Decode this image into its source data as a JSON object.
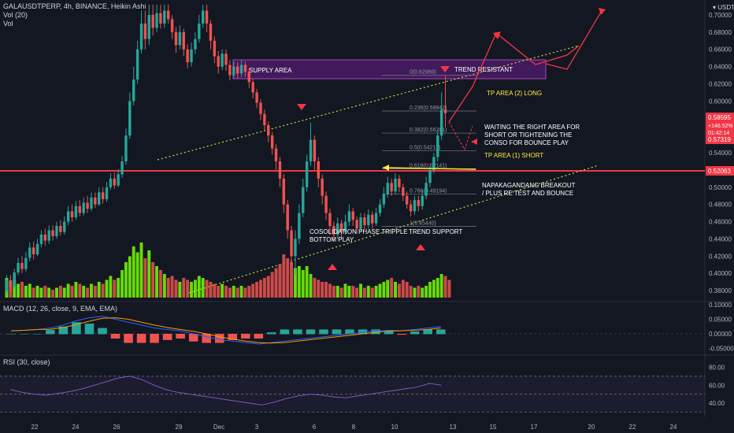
{
  "header": {
    "symbol": "GALAUSDTPERP, 4h, BINANCE, Heikin Ashi",
    "vol_label": "Vol (20)",
    "vol2_label": "Vol",
    "macd_label": "MACD (12, 26, close, 9, EMA, EMA)",
    "rsi_label": "RSI (30, close)",
    "currency": "USDT"
  },
  "price_scale": {
    "ticks": [
      "0.70000",
      "0.68000",
      "0.66000",
      "0.64000",
      "0.62000",
      "0.60000",
      "0.58000",
      "0.56000",
      "0.54000",
      "0.52000",
      "0.50000",
      "0.48000",
      "0.46000",
      "0.44000",
      "0.42000",
      "0.40000",
      "0.38000"
    ],
    "current_price": "0.58595",
    "change": "+146.52%",
    "countdown": "01:42:14",
    "second_price": "0.57319",
    "line_price": "0.52063"
  },
  "macd_scale": {
    "ticks": [
      "0.10000",
      "0.05000",
      "0.00000",
      "-0.05000"
    ]
  },
  "rsi_scale": {
    "ticks": [
      "80.00",
      "60.00",
      "40.00"
    ]
  },
  "time_axis": {
    "labels": [
      "22",
      "24",
      "26",
      "29",
      "Dec",
      "3",
      "6",
      "8",
      "10",
      "13",
      "15",
      "17",
      "20",
      "22",
      "24"
    ]
  },
  "annotations": {
    "supply_area": "SUPPLY AREA",
    "trend_resistant": "TREND RESISTANT",
    "tp_long": "TP AREA (2) LONG",
    "waiting_1": "WAITING THE RIGHT AREA FOR",
    "waiting_2": "SHORT OR TIGHTENING THE",
    "waiting_3": "CONSO FOR BOUNCE PLAY",
    "tp_short": "TP AREA (1) SHORT",
    "breakout_1": "NAPAKAGANDANG BREAKOUT",
    "breakout_2": "/ PLUS RE TEST AND BOUNCE",
    "consolidation_1": "COSOLIDATION PHASE TRIPPLE",
    "consolidation_2": "BOTTOM PLAY",
    "trend_support": "TREND SUPPORT"
  },
  "fib_levels": [
    "0(0.62980)",
    "0.236(0.58842)",
    "0.382(0.56281)",
    "0.5(0.54211)",
    "0.618(0.52141)",
    "0.786(0.49194)",
    "1(0.45440)"
  ],
  "colors": {
    "up": "#26a69a",
    "down": "#ef5350",
    "vol_up": "#76ff03",
    "vol_down": "#ef5350",
    "line_red": "#f23645",
    "supply": "#7b1fa2",
    "trend_line": "#cddc39",
    "rsi_line": "#7e57c2",
    "macd_line": "#2962ff",
    "signal_line": "#ff9800"
  },
  "chart_data": {
    "type": "candlestick",
    "ylim": [
      0.37,
      0.71
    ],
    "candles": [
      {
        "o": 0.38,
        "c": 0.392,
        "h": 0.398,
        "l": 0.376
      },
      {
        "o": 0.392,
        "c": 0.385,
        "h": 0.398,
        "l": 0.378
      },
      {
        "o": 0.385,
        "c": 0.401,
        "h": 0.405,
        "l": 0.382
      },
      {
        "o": 0.401,
        "c": 0.412,
        "h": 0.418,
        "l": 0.398
      },
      {
        "o": 0.412,
        "c": 0.405,
        "h": 0.42,
        "l": 0.4
      },
      {
        "o": 0.405,
        "c": 0.418,
        "h": 0.425,
        "l": 0.402
      },
      {
        "o": 0.418,
        "c": 0.43,
        "h": 0.436,
        "l": 0.414
      },
      {
        "o": 0.43,
        "c": 0.422,
        "h": 0.437,
        "l": 0.416
      },
      {
        "o": 0.422,
        "c": 0.434,
        "h": 0.44,
        "l": 0.42
      },
      {
        "o": 0.434,
        "c": 0.445,
        "h": 0.45,
        "l": 0.43
      },
      {
        "o": 0.445,
        "c": 0.438,
        "h": 0.452,
        "l": 0.432
      },
      {
        "o": 0.438,
        "c": 0.45,
        "h": 0.456,
        "l": 0.434
      },
      {
        "o": 0.45,
        "c": 0.443,
        "h": 0.456,
        "l": 0.438
      },
      {
        "o": 0.443,
        "c": 0.455,
        "h": 0.46,
        "l": 0.44
      },
      {
        "o": 0.455,
        "c": 0.448,
        "h": 0.462,
        "l": 0.444
      },
      {
        "o": 0.448,
        "c": 0.46,
        "h": 0.466,
        "l": 0.445
      },
      {
        "o": 0.46,
        "c": 0.472,
        "h": 0.478,
        "l": 0.456
      },
      {
        "o": 0.472,
        "c": 0.465,
        "h": 0.48,
        "l": 0.46
      },
      {
        "o": 0.465,
        "c": 0.478,
        "h": 0.484,
        "l": 0.462
      },
      {
        "o": 0.478,
        "c": 0.47,
        "h": 0.485,
        "l": 0.466
      },
      {
        "o": 0.47,
        "c": 0.482,
        "h": 0.488,
        "l": 0.467
      },
      {
        "o": 0.482,
        "c": 0.475,
        "h": 0.49,
        "l": 0.47
      },
      {
        "o": 0.475,
        "c": 0.488,
        "h": 0.494,
        "l": 0.472
      },
      {
        "o": 0.488,
        "c": 0.48,
        "h": 0.494,
        "l": 0.476
      },
      {
        "o": 0.48,
        "c": 0.494,
        "h": 0.5,
        "l": 0.478
      },
      {
        "o": 0.494,
        "c": 0.486,
        "h": 0.5,
        "l": 0.481
      },
      {
        "o": 0.486,
        "c": 0.5,
        "h": 0.506,
        "l": 0.483
      },
      {
        "o": 0.5,
        "c": 0.51,
        "h": 0.516,
        "l": 0.497
      },
      {
        "o": 0.51,
        "c": 0.502,
        "h": 0.517,
        "l": 0.498
      },
      {
        "o": 0.502,
        "c": 0.515,
        "h": 0.521,
        "l": 0.5
      },
      {
        "o": 0.515,
        "c": 0.53,
        "h": 0.536,
        "l": 0.511
      },
      {
        "o": 0.53,
        "c": 0.56,
        "h": 0.568,
        "l": 0.526
      },
      {
        "o": 0.56,
        "c": 0.6,
        "h": 0.61,
        "l": 0.556
      },
      {
        "o": 0.6,
        "c": 0.625,
        "h": 0.64,
        "l": 0.595
      },
      {
        "o": 0.625,
        "c": 0.66,
        "h": 0.67,
        "l": 0.62
      },
      {
        "o": 0.66,
        "c": 0.69,
        "h": 0.705,
        "l": 0.655
      },
      {
        "o": 0.69,
        "c": 0.672,
        "h": 0.705,
        "l": 0.66
      },
      {
        "o": 0.672,
        "c": 0.7,
        "h": 0.712,
        "l": 0.665
      },
      {
        "o": 0.7,
        "c": 0.685,
        "h": 0.712,
        "l": 0.676
      },
      {
        "o": 0.685,
        "c": 0.702,
        "h": 0.712,
        "l": 0.68
      },
      {
        "o": 0.702,
        "c": 0.69,
        "h": 0.712,
        "l": 0.684
      },
      {
        "o": 0.69,
        "c": 0.705,
        "h": 0.712,
        "l": 0.685
      },
      {
        "o": 0.705,
        "c": 0.695,
        "h": 0.712,
        "l": 0.69
      },
      {
        "o": 0.695,
        "c": 0.68,
        "h": 0.7,
        "l": 0.672
      },
      {
        "o": 0.68,
        "c": 0.665,
        "h": 0.686,
        "l": 0.656
      },
      {
        "o": 0.665,
        "c": 0.68,
        "h": 0.688,
        "l": 0.66
      },
      {
        "o": 0.68,
        "c": 0.66,
        "h": 0.684,
        "l": 0.652
      },
      {
        "o": 0.66,
        "c": 0.645,
        "h": 0.666,
        "l": 0.638
      },
      {
        "o": 0.645,
        "c": 0.66,
        "h": 0.668,
        "l": 0.64
      },
      {
        "o": 0.66,
        "c": 0.672,
        "h": 0.68,
        "l": 0.655
      },
      {
        "o": 0.672,
        "c": 0.69,
        "h": 0.7,
        "l": 0.668
      },
      {
        "o": 0.69,
        "c": 0.705,
        "h": 0.712,
        "l": 0.685
      },
      {
        "o": 0.705,
        "c": 0.69,
        "h": 0.712,
        "l": 0.68
      },
      {
        "o": 0.69,
        "c": 0.67,
        "h": 0.694,
        "l": 0.66
      },
      {
        "o": 0.67,
        "c": 0.652,
        "h": 0.675,
        "l": 0.644
      },
      {
        "o": 0.652,
        "c": 0.64,
        "h": 0.658,
        "l": 0.632
      },
      {
        "o": 0.64,
        "c": 0.655,
        "h": 0.66,
        "l": 0.636
      },
      {
        "o": 0.655,
        "c": 0.642,
        "h": 0.66,
        "l": 0.635
      },
      {
        "o": 0.642,
        "c": 0.63,
        "h": 0.648,
        "l": 0.624
      },
      {
        "o": 0.63,
        "c": 0.64,
        "h": 0.646,
        "l": 0.626
      },
      {
        "o": 0.64,
        "c": 0.632,
        "h": 0.645,
        "l": 0.626
      },
      {
        "o": 0.632,
        "c": 0.642,
        "h": 0.648,
        "l": 0.628
      },
      {
        "o": 0.642,
        "c": 0.634,
        "h": 0.646,
        "l": 0.628
      },
      {
        "o": 0.634,
        "c": 0.622,
        "h": 0.638,
        "l": 0.615
      },
      {
        "o": 0.622,
        "c": 0.61,
        "h": 0.626,
        "l": 0.603
      },
      {
        "o": 0.61,
        "c": 0.598,
        "h": 0.614,
        "l": 0.592
      },
      {
        "o": 0.598,
        "c": 0.585,
        "h": 0.602,
        "l": 0.578
      },
      {
        "o": 0.585,
        "c": 0.572,
        "h": 0.59,
        "l": 0.565
      },
      {
        "o": 0.572,
        "c": 0.56,
        "h": 0.576,
        "l": 0.552
      },
      {
        "o": 0.56,
        "c": 0.545,
        "h": 0.564,
        "l": 0.538
      },
      {
        "o": 0.545,
        "c": 0.53,
        "h": 0.55,
        "l": 0.52
      },
      {
        "o": 0.53,
        "c": 0.51,
        "h": 0.535,
        "l": 0.5
      },
      {
        "o": 0.51,
        "c": 0.48,
        "h": 0.515,
        "l": 0.47
      },
      {
        "o": 0.48,
        "c": 0.45,
        "h": 0.485,
        "l": 0.44
      },
      {
        "o": 0.45,
        "c": 0.42,
        "h": 0.455,
        "l": 0.405
      },
      {
        "o": 0.42,
        "c": 0.44,
        "h": 0.45,
        "l": 0.398
      },
      {
        "o": 0.44,
        "c": 0.47,
        "h": 0.48,
        "l": 0.434
      },
      {
        "o": 0.47,
        "c": 0.5,
        "h": 0.51,
        "l": 0.465
      },
      {
        "o": 0.5,
        "c": 0.53,
        "h": 0.538,
        "l": 0.495
      },
      {
        "o": 0.53,
        "c": 0.555,
        "h": 0.575,
        "l": 0.525
      },
      {
        "o": 0.555,
        "c": 0.53,
        "h": 0.56,
        "l": 0.52
      },
      {
        "o": 0.53,
        "c": 0.51,
        "h": 0.535,
        "l": 0.5
      },
      {
        "o": 0.51,
        "c": 0.49,
        "h": 0.515,
        "l": 0.48
      },
      {
        "o": 0.49,
        "c": 0.47,
        "h": 0.495,
        "l": 0.462
      },
      {
        "o": 0.47,
        "c": 0.455,
        "h": 0.475,
        "l": 0.445
      },
      {
        "o": 0.455,
        "c": 0.445,
        "h": 0.46,
        "l": 0.438
      },
      {
        "o": 0.445,
        "c": 0.458,
        "h": 0.465,
        "l": 0.44
      },
      {
        "o": 0.458,
        "c": 0.448,
        "h": 0.462,
        "l": 0.44
      },
      {
        "o": 0.448,
        "c": 0.46,
        "h": 0.468,
        "l": 0.445
      },
      {
        "o": 0.46,
        "c": 0.472,
        "h": 0.48,
        "l": 0.455
      },
      {
        "o": 0.472,
        "c": 0.462,
        "h": 0.476,
        "l": 0.455
      },
      {
        "o": 0.462,
        "c": 0.452,
        "h": 0.466,
        "l": 0.446
      },
      {
        "o": 0.452,
        "c": 0.465,
        "h": 0.47,
        "l": 0.448
      },
      {
        "o": 0.465,
        "c": 0.456,
        "h": 0.47,
        "l": 0.45
      },
      {
        "o": 0.456,
        "c": 0.468,
        "h": 0.474,
        "l": 0.452
      },
      {
        "o": 0.468,
        "c": 0.458,
        "h": 0.472,
        "l": 0.452
      },
      {
        "o": 0.458,
        "c": 0.47,
        "h": 0.476,
        "l": 0.455
      },
      {
        "o": 0.47,
        "c": 0.48,
        "h": 0.486,
        "l": 0.466
      },
      {
        "o": 0.48,
        "c": 0.492,
        "h": 0.5,
        "l": 0.476
      },
      {
        "o": 0.492,
        "c": 0.505,
        "h": 0.512,
        "l": 0.488
      },
      {
        "o": 0.505,
        "c": 0.495,
        "h": 0.51,
        "l": 0.49
      },
      {
        "o": 0.495,
        "c": 0.51,
        "h": 0.516,
        "l": 0.492
      },
      {
        "o": 0.51,
        "c": 0.5,
        "h": 0.514,
        "l": 0.494
      },
      {
        "o": 0.5,
        "c": 0.49,
        "h": 0.504,
        "l": 0.484
      },
      {
        "o": 0.49,
        "c": 0.48,
        "h": 0.495,
        "l": 0.475
      },
      {
        "o": 0.48,
        "c": 0.472,
        "h": 0.485,
        "l": 0.466
      },
      {
        "o": 0.472,
        "c": 0.485,
        "h": 0.49,
        "l": 0.468
      },
      {
        "o": 0.485,
        "c": 0.478,
        "h": 0.49,
        "l": 0.472
      },
      {
        "o": 0.478,
        "c": 0.49,
        "h": 0.496,
        "l": 0.474
      },
      {
        "o": 0.49,
        "c": 0.505,
        "h": 0.512,
        "l": 0.486
      },
      {
        "o": 0.505,
        "c": 0.52,
        "h": 0.526,
        "l": 0.5
      },
      {
        "o": 0.52,
        "c": 0.535,
        "h": 0.54,
        "l": 0.516
      },
      {
        "o": 0.535,
        "c": 0.56,
        "h": 0.566,
        "l": 0.53
      },
      {
        "o": 0.56,
        "c": 0.59,
        "h": 0.61,
        "l": 0.555
      },
      {
        "o": 0.59,
        "c": 0.586,
        "h": 0.63,
        "l": 0.57
      }
    ],
    "volume": [
      1.0,
      0.8,
      0.9,
      0.7,
      0.8,
      0.6,
      0.7,
      0.5,
      0.6,
      0.5,
      0.6,
      0.5,
      0.4,
      0.5,
      0.6,
      0.5,
      0.7,
      0.6,
      0.8,
      0.7,
      0.6,
      0.5,
      0.7,
      0.6,
      0.8,
      0.7,
      0.9,
      1.1,
      0.9,
      1.0,
      1.4,
      1.8,
      2.1,
      2.6,
      2.3,
      2.8,
      2.0,
      2.4,
      1.8,
      1.6,
      1.4,
      1.2,
      1.0,
      1.1,
      0.9,
      0.8,
      1.0,
      0.9,
      0.8,
      0.9,
      1.1,
      1.0,
      0.9,
      0.8,
      0.7,
      0.6,
      0.7,
      0.6,
      0.5,
      0.6,
      0.5,
      0.6,
      0.5,
      0.6,
      0.7,
      0.8,
      0.9,
      1.0,
      1.1,
      1.3,
      1.5,
      1.7,
      2.2,
      2.0,
      1.8,
      1.5,
      1.6,
      1.4,
      1.6,
      1.2,
      1.0,
      0.9,
      0.8,
      0.8,
      0.7,
      0.6,
      0.6,
      0.5,
      0.7,
      0.6,
      0.6,
      0.5,
      0.7,
      0.5,
      0.6,
      0.5,
      0.6,
      0.7,
      0.8,
      0.9,
      1.0,
      0.8,
      0.7,
      0.9,
      0.8,
      0.6,
      0.5,
      0.6,
      0.5,
      0.6,
      0.8,
      0.9,
      1.0,
      1.2,
      1.1,
      0.9
    ],
    "macd": [
      0.01,
      0.012,
      0.015,
      0.02,
      0.03,
      0.045,
      0.055,
      0.06,
      0.05,
      0.04,
      0.03,
      0.02,
      0.015,
      0.01,
      0.0,
      -0.01,
      -0.02,
      -0.025,
      -0.03,
      -0.035,
      -0.03,
      -0.025,
      -0.02,
      -0.015,
      -0.01,
      -0.005,
      0.0,
      0.005,
      0.01,
      0.012,
      0.01,
      0.015,
      0.02,
      0.025
    ],
    "rsi": [
      55,
      52,
      50,
      49,
      51,
      53,
      56,
      60,
      64,
      68,
      70,
      66,
      60,
      55,
      52,
      50,
      48,
      46,
      44,
      42,
      40,
      38,
      41,
      45,
      48,
      50,
      49,
      47,
      46,
      48,
      50,
      52,
      54,
      56,
      58,
      62,
      60
    ]
  }
}
